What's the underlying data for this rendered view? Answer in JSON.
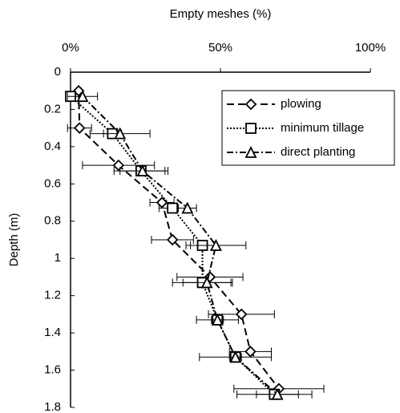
{
  "chart_data": {
    "type": "scatter-line",
    "xlabel": "Empty meshes (%)",
    "ylabel": "Depth (m)",
    "xlim": [
      0,
      100
    ],
    "ylim": [
      0,
      1.8
    ],
    "y_inverted": true,
    "x_axis_position": "top",
    "xticks": [
      {
        "value": 0,
        "label": "0%"
      },
      {
        "value": 50,
        "label": "50%"
      },
      {
        "value": 100,
        "label": "100%"
      }
    ],
    "yticks": [
      0,
      0.2,
      0.4,
      0.6,
      0.8,
      1,
      1.2,
      1.4,
      1.6,
      1.8
    ],
    "legend": "upper right",
    "series": [
      {
        "name": "plowing",
        "color": "#000000",
        "marker": "diamond",
        "dash": "9,5",
        "x": [
          2.7,
          3,
          16,
          30.5,
          34,
          46.5,
          57,
          60,
          69.5
        ],
        "y": [
          0.1,
          0.3,
          0.5,
          0.7,
          0.9,
          1.1,
          1.3,
          1.5,
          1.7
        ],
        "errors": [
          0,
          4,
          12,
          4,
          7,
          11,
          11,
          7,
          15
        ]
      },
      {
        "name": "minimum tillage",
        "color": "#000000",
        "marker": "square",
        "dash": "2,2",
        "x": [
          0,
          14,
          23.5,
          34,
          44,
          44,
          49,
          55,
          68
        ],
        "y": [
          0.13,
          0.33,
          0.53,
          0.73,
          0.93,
          1.13,
          1.33,
          1.53,
          1.73
        ],
        "errors": [
          0,
          3,
          9,
          4.5,
          4,
          10,
          7,
          12,
          12.5
        ]
      },
      {
        "name": "direct planting",
        "color": "#000000",
        "marker": "triangle",
        "dash": "8,3,2,3",
        "x": [
          4,
          16.5,
          24,
          39,
          48.5,
          45.5,
          49,
          55,
          69
        ],
        "y": [
          0.13,
          0.33,
          0.53,
          0.73,
          0.93,
          1.13,
          1.33,
          1.53,
          1.73
        ],
        "errors": [
          5,
          10,
          7.5,
          3,
          10,
          8,
          2,
          2,
          7
        ]
      }
    ]
  }
}
